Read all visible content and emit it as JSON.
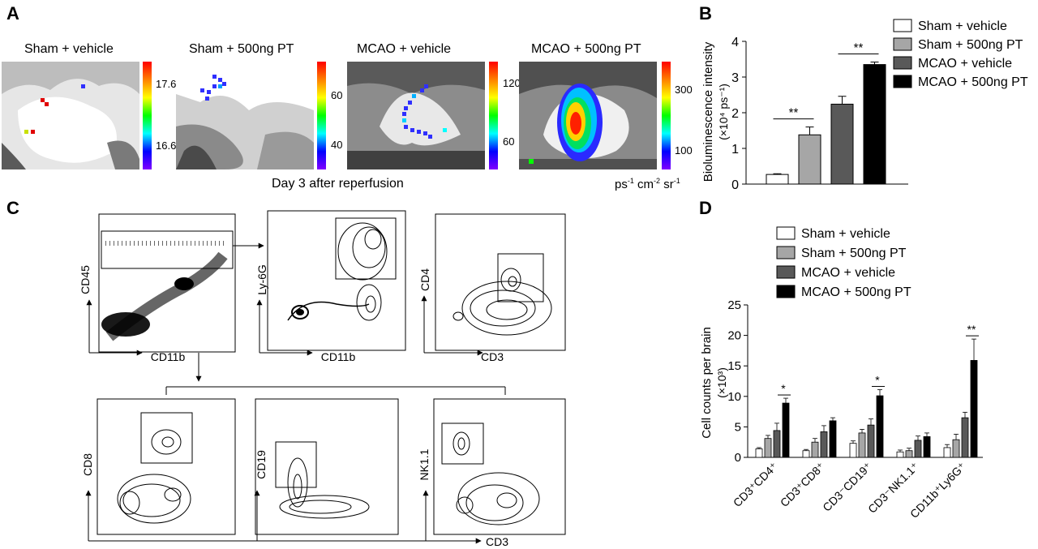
{
  "panels": {
    "A": "A",
    "B": "B",
    "C": "C",
    "D": "D"
  },
  "panel_a": {
    "images": [
      {
        "title": "Sham + vehicle",
        "scale_ticks": [
          "17.6",
          "16.6"
        ]
      },
      {
        "title": "Sham + 500ng PT",
        "scale_ticks": [
          "60",
          "40"
        ]
      },
      {
        "title": "MCAO + vehicle",
        "scale_ticks": [
          "120",
          "60"
        ]
      },
      {
        "title": "MCAO + 500ng PT",
        "scale_ticks": [
          "300",
          "100"
        ]
      }
    ],
    "caption": "Day 3 after reperfusion",
    "units": "ps-1 cm-2 sr-1"
  },
  "panel_c": {
    "plots": [
      {
        "x": "CD11b",
        "y": "CD45"
      },
      {
        "x": "CD11b",
        "y": "Ly-6G"
      },
      {
        "x": "CD3",
        "y": "CD4"
      },
      {
        "x": "",
        "y": "CD8"
      },
      {
        "x": "",
        "y": "CD19"
      },
      {
        "x": "CD3",
        "y": "NK1.1"
      }
    ]
  },
  "chart_data": [
    {
      "type": "bar",
      "panel": "B",
      "ylabel_main": "Bioluminescence intensity",
      "ylabel_unit": "(×10⁴ ps⁻¹)",
      "ylim": [
        0,
        4
      ],
      "yticks": [
        "0",
        "1",
        "2",
        "3",
        "4"
      ],
      "legend": [
        "Sham + vehicle",
        "Sham + 500ng PT",
        "MCAO + vehicle",
        "MCAO + 500ng PT"
      ],
      "legend_position": "right",
      "colors": [
        "#ffffff",
        "#a6a6a6",
        "#595959",
        "#000000"
      ],
      "values": [
        0.27,
        1.38,
        2.24,
        3.35
      ],
      "errors": [
        0.02,
        0.22,
        0.22,
        0.07
      ],
      "significance": [
        {
          "label": "**",
          "between": [
            1,
            2
          ]
        },
        {
          "label": "**",
          "between": [
            3,
            4
          ]
        }
      ]
    },
    {
      "type": "bar",
      "panel": "D",
      "ylabel_main": "Cell counts per brain",
      "ylabel_unit": "(×10³)",
      "ylim": [
        0,
        25
      ],
      "yticks": [
        "0",
        "5",
        "10",
        "15",
        "20",
        "25"
      ],
      "legend": [
        "Sham + vehicle",
        "Sham + 500ng PT",
        "MCAO + vehicle",
        "MCAO + 500ng PT"
      ],
      "legend_position": "top",
      "colors": [
        "#ffffff",
        "#a6a6a6",
        "#595959",
        "#000000"
      ],
      "categories": [
        "CD3⁺CD4⁺",
        "CD3⁺CD8⁺",
        "CD3⁻CD19⁺",
        "CD3⁻NK1.1⁺",
        "CD11b⁺Ly6G⁺"
      ],
      "series": [
        {
          "name": "Sham + vehicle",
          "values": [
            1.4,
            1.1,
            2.3,
            0.9,
            1.6
          ],
          "errors": [
            0.2,
            0.2,
            0.4,
            0.3,
            0.5
          ]
        },
        {
          "name": "Sham + 500ng PT",
          "values": [
            3.1,
            2.5,
            4.0,
            1.1,
            2.9
          ],
          "errors": [
            0.5,
            0.6,
            0.6,
            0.4,
            0.9
          ]
        },
        {
          "name": "MCAO + vehicle",
          "values": [
            4.4,
            4.2,
            5.3,
            2.8,
            6.5
          ],
          "errors": [
            1.2,
            1.0,
            1.0,
            0.7,
            0.9
          ]
        },
        {
          "name": "MCAO + 500ng PT",
          "values": [
            8.9,
            6.0,
            10.1,
            3.4,
            15.9
          ],
          "errors": [
            0.8,
            0.5,
            1.0,
            0.6,
            3.5
          ]
        }
      ],
      "significance": [
        {
          "label": "*",
          "category": 0
        },
        {
          "label": "*",
          "category": 2
        },
        {
          "label": "**",
          "category": 4
        }
      ]
    }
  ]
}
